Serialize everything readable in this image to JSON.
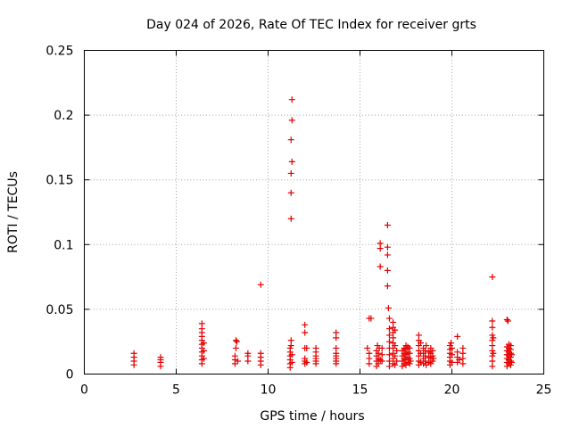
{
  "chart_data": {
    "type": "scatter",
    "title": "Day 024 of 2026, Rate Of TEC Index for receiver grts",
    "xlabel": "GPS time / hours",
    "ylabel": "ROTI / TECUs",
    "xlim": [
      0,
      25
    ],
    "ylim": [
      0,
      0.25
    ],
    "xticks": [
      0,
      5,
      10,
      15,
      20,
      25
    ],
    "xtick_labels": [
      "0",
      "5",
      "10",
      "15",
      "20",
      "25"
    ],
    "yticks": [
      0,
      0.05,
      0.1,
      0.15,
      0.2,
      0.25
    ],
    "ytick_labels": [
      "0",
      "0.05",
      "0.1",
      "0.15",
      "0.2",
      "0.25"
    ],
    "grid": true,
    "marker": "plus",
    "color": "#e60000",
    "series": [
      {
        "name": "ROTI",
        "points": [
          [
            2.7,
            0.007
          ],
          [
            2.7,
            0.01
          ],
          [
            2.7,
            0.013
          ],
          [
            2.7,
            0.016
          ],
          [
            4.15,
            0.006
          ],
          [
            4.15,
            0.009
          ],
          [
            4.15,
            0.011
          ],
          [
            4.15,
            0.013
          ],
          [
            6.4,
            0.008
          ],
          [
            6.4,
            0.011
          ],
          [
            6.4,
            0.014
          ],
          [
            6.4,
            0.017
          ],
          [
            6.4,
            0.02
          ],
          [
            6.4,
            0.023
          ],
          [
            6.4,
            0.026
          ],
          [
            6.4,
            0.029
          ],
          [
            6.4,
            0.032
          ],
          [
            6.4,
            0.035
          ],
          [
            6.4,
            0.039
          ],
          [
            6.5,
            0.012
          ],
          [
            6.5,
            0.018
          ],
          [
            6.5,
            0.024
          ],
          [
            8.2,
            0.008
          ],
          [
            8.2,
            0.011
          ],
          [
            8.2,
            0.014
          ],
          [
            8.25,
            0.02
          ],
          [
            8.25,
            0.026
          ],
          [
            8.3,
            0.025
          ],
          [
            8.35,
            0.01
          ],
          [
            8.9,
            0.01
          ],
          [
            8.9,
            0.014
          ],
          [
            8.9,
            0.016
          ],
          [
            9.6,
            0.007
          ],
          [
            9.6,
            0.01
          ],
          [
            9.6,
            0.013
          ],
          [
            9.6,
            0.016
          ],
          [
            9.6,
            0.069
          ],
          [
            11.2,
            0.005
          ],
          [
            11.2,
            0.008
          ],
          [
            11.2,
            0.011
          ],
          [
            11.2,
            0.014
          ],
          [
            11.2,
            0.017
          ],
          [
            11.2,
            0.02
          ],
          [
            11.25,
            0.022
          ],
          [
            11.25,
            0.026
          ],
          [
            11.3,
            0.009
          ],
          [
            11.3,
            0.015
          ],
          [
            11.25,
            0.12
          ],
          [
            11.25,
            0.14
          ],
          [
            11.25,
            0.155
          ],
          [
            11.3,
            0.164
          ],
          [
            11.25,
            0.181
          ],
          [
            11.3,
            0.196
          ],
          [
            11.3,
            0.212
          ],
          [
            12.0,
            0.008
          ],
          [
            12.0,
            0.01
          ],
          [
            12.0,
            0.012
          ],
          [
            12.0,
            0.02
          ],
          [
            12.0,
            0.032
          ],
          [
            12.0,
            0.038
          ],
          [
            12.1,
            0.009
          ],
          [
            12.1,
            0.02
          ],
          [
            12.6,
            0.008
          ],
          [
            12.6,
            0.01
          ],
          [
            12.6,
            0.012
          ],
          [
            12.6,
            0.014
          ],
          [
            12.6,
            0.017
          ],
          [
            12.6,
            0.02
          ],
          [
            13.7,
            0.008
          ],
          [
            13.7,
            0.01
          ],
          [
            13.7,
            0.012
          ],
          [
            13.7,
            0.014
          ],
          [
            13.7,
            0.016
          ],
          [
            13.7,
            0.02
          ],
          [
            13.7,
            0.028
          ],
          [
            13.7,
            0.032
          ],
          [
            15.5,
            0.043
          ],
          [
            15.6,
            0.043
          ],
          [
            15.4,
            0.02
          ],
          [
            15.5,
            0.008
          ],
          [
            15.5,
            0.012
          ],
          [
            15.5,
            0.016
          ],
          [
            15.9,
            0.006
          ],
          [
            15.9,
            0.01
          ],
          [
            15.9,
            0.014
          ],
          [
            15.9,
            0.018
          ],
          [
            15.95,
            0.022
          ],
          [
            16.0,
            0.008
          ],
          [
            16.0,
            0.012
          ],
          [
            16.0,
            0.016
          ],
          [
            16.05,
            0.02
          ],
          [
            16.1,
            0.011
          ],
          [
            16.1,
            0.083
          ],
          [
            16.1,
            0.097
          ],
          [
            16.1,
            0.101
          ],
          [
            16.2,
            0.01
          ],
          [
            16.2,
            0.015
          ],
          [
            16.2,
            0.02
          ],
          [
            16.5,
            0.115
          ],
          [
            16.5,
            0.098
          ],
          [
            16.5,
            0.092
          ],
          [
            16.5,
            0.08
          ],
          [
            16.5,
            0.068
          ],
          [
            16.55,
            0.051
          ],
          [
            16.6,
            0.043
          ],
          [
            16.6,
            0.035
          ],
          [
            16.6,
            0.03
          ],
          [
            16.6,
            0.025
          ],
          [
            16.6,
            0.02
          ],
          [
            16.6,
            0.015
          ],
          [
            16.6,
            0.01
          ],
          [
            16.6,
            0.006
          ],
          [
            16.8,
            0.04
          ],
          [
            16.8,
            0.036
          ],
          [
            16.8,
            0.032
          ],
          [
            16.8,
            0.028
          ],
          [
            16.8,
            0.024
          ],
          [
            16.8,
            0.02
          ],
          [
            16.8,
            0.016
          ],
          [
            16.8,
            0.012
          ],
          [
            16.8,
            0.008
          ],
          [
            16.9,
            0.034
          ],
          [
            16.9,
            0.022
          ],
          [
            16.9,
            0.014
          ],
          [
            16.9,
            0.007
          ],
          [
            17.0,
            0.018
          ],
          [
            17.0,
            0.01
          ],
          [
            17.3,
            0.006
          ],
          [
            17.3,
            0.01
          ],
          [
            17.3,
            0.014
          ],
          [
            17.3,
            0.018
          ],
          [
            17.4,
            0.008
          ],
          [
            17.4,
            0.012
          ],
          [
            17.4,
            0.016
          ],
          [
            17.4,
            0.02
          ],
          [
            17.5,
            0.007
          ],
          [
            17.5,
            0.011
          ],
          [
            17.5,
            0.015
          ],
          [
            17.5,
            0.019
          ],
          [
            17.5,
            0.022
          ],
          [
            17.6,
            0.009
          ],
          [
            17.6,
            0.013
          ],
          [
            17.6,
            0.017
          ],
          [
            17.6,
            0.021
          ],
          [
            17.7,
            0.008
          ],
          [
            17.7,
            0.012
          ],
          [
            17.7,
            0.016
          ],
          [
            17.7,
            0.02
          ],
          [
            17.75,
            0.01
          ],
          [
            18.2,
            0.03
          ],
          [
            18.2,
            0.026
          ],
          [
            18.2,
            0.022
          ],
          [
            18.2,
            0.018
          ],
          [
            18.2,
            0.014
          ],
          [
            18.2,
            0.01
          ],
          [
            18.2,
            0.007
          ],
          [
            18.3,
            0.024
          ],
          [
            18.3,
            0.016
          ],
          [
            18.3,
            0.009
          ],
          [
            18.45,
            0.008
          ],
          [
            18.45,
            0.012
          ],
          [
            18.45,
            0.016
          ],
          [
            18.45,
            0.02
          ],
          [
            18.55,
            0.01
          ],
          [
            18.55,
            0.014
          ],
          [
            18.55,
            0.018
          ],
          [
            18.6,
            0.007
          ],
          [
            18.6,
            0.022
          ],
          [
            18.75,
            0.009
          ],
          [
            18.75,
            0.013
          ],
          [
            18.75,
            0.017
          ],
          [
            18.85,
            0.008
          ],
          [
            18.85,
            0.012
          ],
          [
            18.85,
            0.016
          ],
          [
            18.85,
            0.02
          ],
          [
            18.95,
            0.01
          ],
          [
            18.95,
            0.014
          ],
          [
            18.95,
            0.018
          ],
          [
            19.0,
            0.012
          ],
          [
            19.9,
            0.007
          ],
          [
            19.9,
            0.01
          ],
          [
            19.9,
            0.013
          ],
          [
            19.9,
            0.016
          ],
          [
            19.9,
            0.019
          ],
          [
            19.9,
            0.022
          ],
          [
            19.95,
            0.024
          ],
          [
            20.0,
            0.009
          ],
          [
            20.0,
            0.015
          ],
          [
            20.0,
            0.02
          ],
          [
            20.3,
            0.009
          ],
          [
            20.3,
            0.013
          ],
          [
            20.3,
            0.017
          ],
          [
            20.3,
            0.029
          ],
          [
            20.4,
            0.011
          ],
          [
            20.6,
            0.008
          ],
          [
            20.6,
            0.012
          ],
          [
            20.6,
            0.016
          ],
          [
            20.6,
            0.02
          ],
          [
            22.2,
            0.075
          ],
          [
            22.2,
            0.041
          ],
          [
            22.2,
            0.036
          ],
          [
            22.2,
            0.03
          ],
          [
            22.2,
            0.026
          ],
          [
            22.2,
            0.022
          ],
          [
            22.2,
            0.018
          ],
          [
            22.2,
            0.014
          ],
          [
            22.2,
            0.01
          ],
          [
            22.2,
            0.006
          ],
          [
            22.25,
            0.028
          ],
          [
            22.25,
            0.016
          ],
          [
            23.0,
            0.042
          ],
          [
            23.05,
            0.041
          ],
          [
            23.0,
            0.006
          ],
          [
            23.0,
            0.009
          ],
          [
            23.0,
            0.012
          ],
          [
            23.0,
            0.015
          ],
          [
            23.0,
            0.018
          ],
          [
            23.0,
            0.021
          ],
          [
            23.1,
            0.008
          ],
          [
            23.1,
            0.011
          ],
          [
            23.1,
            0.014
          ],
          [
            23.1,
            0.017
          ],
          [
            23.1,
            0.02
          ],
          [
            23.1,
            0.023
          ],
          [
            23.2,
            0.007
          ],
          [
            23.2,
            0.01
          ],
          [
            23.2,
            0.013
          ],
          [
            23.2,
            0.016
          ],
          [
            23.2,
            0.019
          ],
          [
            23.2,
            0.022
          ],
          [
            23.25,
            0.009
          ],
          [
            23.25,
            0.015
          ]
        ]
      }
    ]
  }
}
